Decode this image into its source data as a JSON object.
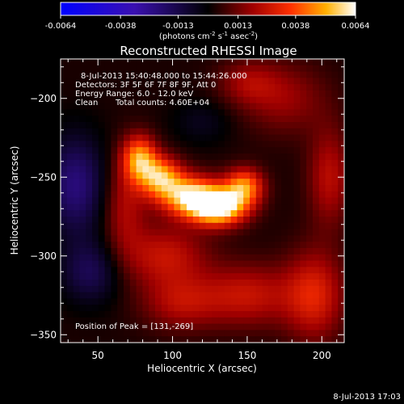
{
  "chart_data": {
    "type": "heatmap",
    "title": "Reconstructed RHESSI Image",
    "xlabel": "Heliocentric X (arcsec)",
    "ylabel": "Heliocentric Y (arcsec)",
    "xlim": [
      25,
      215
    ],
    "ylim": [
      -355,
      -175
    ],
    "xticks": [
      50,
      100,
      150,
      200
    ],
    "yticks": [
      -200,
      -250,
      -300,
      -350
    ],
    "colorbar": {
      "range": [
        -0.0064,
        0.0064
      ],
      "ticks": [
        "-0.0064",
        "-0.0038",
        "-0.0013",
        "0.0013",
        "0.0038",
        "0.0064"
      ],
      "unit_label": "(photons cm",
      "unit_sup1": "-2",
      "unit_mid": " s",
      "unit_sup2": "-1",
      "unit_mid2": " asec",
      "unit_sup3": "-2",
      "unit_end": ")"
    },
    "annotations": {
      "time_range": "8-Jul-2013 15:40:48.000 to 15:44:26.000",
      "detectors": "Detectors: 3F 5F 6F 7F 8F 9F, Att 0",
      "energy_range": "Energy Range: 6.0 - 12.0 keV",
      "clean": "Clean",
      "total_counts": "Total counts: 4.60E+04",
      "peak_position": "Position of Peak = [131,-269]"
    },
    "peak": [
      131,
      -269
    ],
    "sources": [
      {
        "x": 131,
        "y": -269,
        "peak": 0.0064,
        "sx": 13,
        "sy": 8
      },
      {
        "x": 112,
        "y": -262,
        "peak": 0.0052,
        "sx": 14,
        "sy": 9
      },
      {
        "x": 148,
        "y": -256,
        "peak": 0.0042,
        "sx": 9,
        "sy": 8
      },
      {
        "x": 92,
        "y": -250,
        "peak": 0.0045,
        "sx": 10,
        "sy": 9
      },
      {
        "x": 78,
        "y": -238,
        "peak": 0.0043,
        "sx": 8,
        "sy": 10
      },
      {
        "x": 68,
        "y": -268,
        "peak": 0.0018,
        "sx": 10,
        "sy": 22
      },
      {
        "x": 95,
        "y": -300,
        "peak": 0.0022,
        "sx": 20,
        "sy": 14
      },
      {
        "x": 105,
        "y": -330,
        "peak": 0.0018,
        "sx": 18,
        "sy": 12
      },
      {
        "x": 150,
        "y": -325,
        "peak": 0.0022,
        "sx": 22,
        "sy": 14
      },
      {
        "x": 195,
        "y": -325,
        "peak": 0.0026,
        "sx": 14,
        "sy": 20
      },
      {
        "x": 175,
        "y": -200,
        "peak": 0.0015,
        "sx": 20,
        "sy": 16
      },
      {
        "x": 205,
        "y": -250,
        "peak": 0.002,
        "sx": 10,
        "sy": 22
      },
      {
        "x": 150,
        "y": -190,
        "peak": 0.0014,
        "sx": 14,
        "sy": 10
      },
      {
        "x": 35,
        "y": -255,
        "peak": -0.0025,
        "sx": 14,
        "sy": 22
      },
      {
        "x": 45,
        "y": -310,
        "peak": -0.0018,
        "sx": 14,
        "sy": 14
      },
      {
        "x": 120,
        "y": -215,
        "peak": -0.0008,
        "sx": 14,
        "sy": 10
      }
    ]
  },
  "footer": {
    "timestamp": "8-Jul-2013 17:03"
  }
}
